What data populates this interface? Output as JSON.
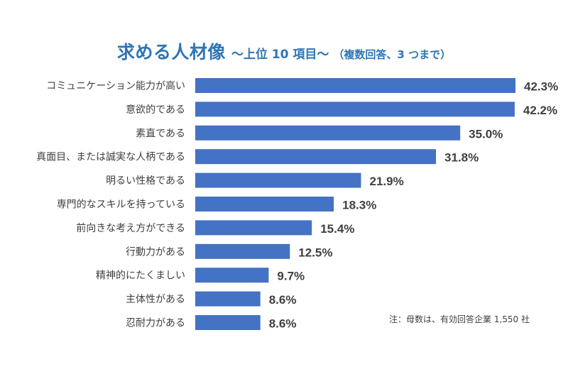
{
  "chart_data": {
    "type": "bar",
    "orientation": "horizontal",
    "title": "求める人材像",
    "subtitle": "～上位 10 項目～",
    "subtitle_note": "（複数回答、3 つまで）",
    "categories": [
      "コミュニケーション能力が高い",
      "意欲的である",
      "素直である",
      "真面目、または誠実な人柄である",
      "明るい性格である",
      "専門的なスキルを持っている",
      "前向きな考え方ができる",
      "行動力がある",
      "精神的にたくましい",
      "主体性がある",
      "忍耐力がある"
    ],
    "values": [
      42.3,
      42.2,
      35.0,
      31.8,
      21.9,
      18.3,
      15.4,
      12.5,
      9.7,
      8.6,
      8.6
    ],
    "data_labels": [
      "42.3%",
      "42.2%",
      "35.0%",
      "31.8%",
      "21.9%",
      "18.3%",
      "15.4%",
      "12.5%",
      "9.7%",
      "8.6%",
      "8.6%"
    ],
    "unit": "%",
    "xlabel": "",
    "ylabel": "",
    "xlim": [
      0,
      42.3
    ],
    "grid": false,
    "legend": "none",
    "bar_color": "#4472c4",
    "annotation": "注：母数は、有効回答企業 1,550 社"
  },
  "colors": {
    "title": "#2e75b6",
    "label_text": "#404040",
    "value_text": "#404040"
  }
}
